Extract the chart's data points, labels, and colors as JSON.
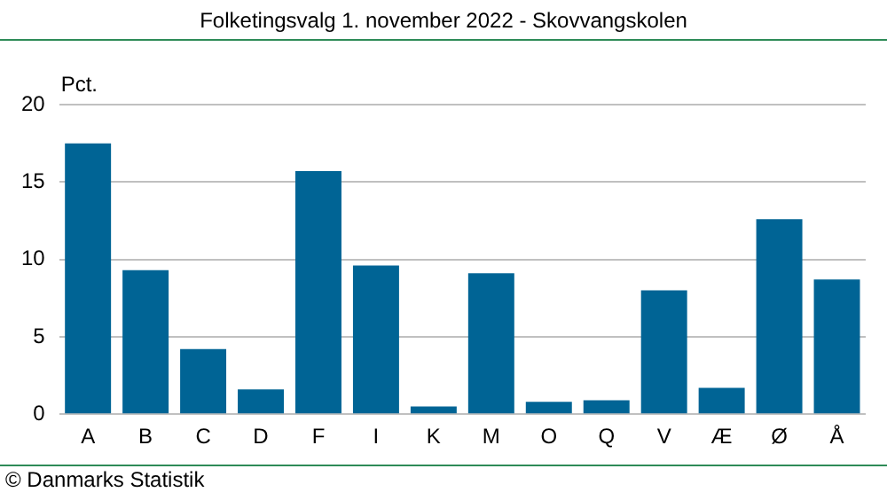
{
  "chart_data": {
    "type": "bar",
    "title": "Folketingsvalg 1. november 2022 - Skovvangskolen",
    "ylabel": "Pct.",
    "categories": [
      "A",
      "B",
      "C",
      "D",
      "F",
      "I",
      "K",
      "M",
      "O",
      "Q",
      "V",
      "Æ",
      "Ø",
      "Å"
    ],
    "values": [
      17.5,
      9.3,
      4.2,
      1.6,
      15.7,
      9.6,
      0.5,
      9.1,
      0.8,
      0.9,
      8.0,
      1.7,
      12.6,
      8.7
    ],
    "color": "#006495",
    "ylim": [
      0,
      20
    ],
    "yticks": [
      0,
      5,
      10,
      15,
      20
    ],
    "grid": "y",
    "annotations": [
      "© Danmarks Statistik"
    ]
  }
}
